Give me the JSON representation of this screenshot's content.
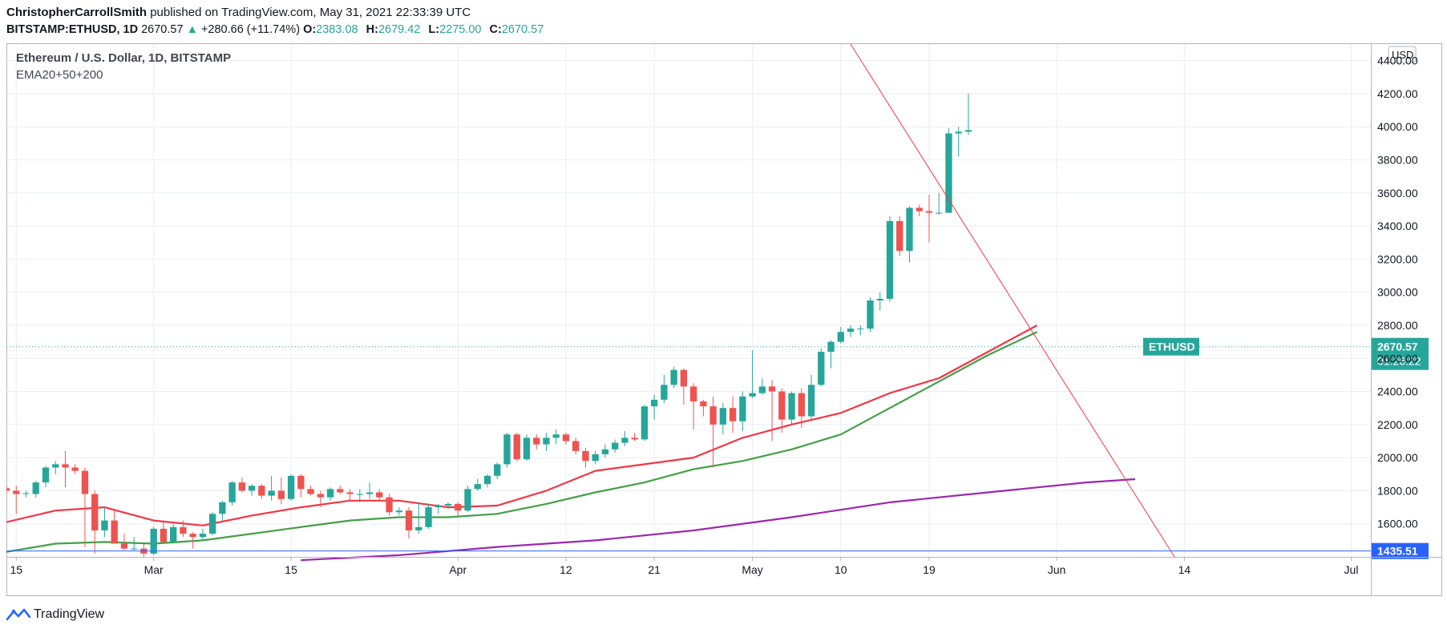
{
  "header": {
    "author": "ChristopherCarrollSmith",
    "published": "published on TradingView.com, May 31, 2021 22:33:39 UTC",
    "symbol": "BITSTAMP:ETHUSD, 1D",
    "last": "2670.57",
    "change": "+280.66 (+11.74%)",
    "o_label": "O:",
    "o": "2383.08",
    "h_label": "H:",
    "h": "2679.42",
    "l_label": "L:",
    "l": "2275.00",
    "c_label": "C:",
    "c": "2670.57"
  },
  "legend": {
    "title": "Ethereum / U.S. Dollar, 1D, BITSTAMP",
    "indicator": "EMA20+50+200"
  },
  "price_scale": {
    "currency": "USD",
    "symbol_tag": "ETHUSD",
    "last_price": "2670.57",
    "countdown": "01:26:22",
    "hline_label": "1435.51"
  },
  "footer": {
    "brand": "TradingView"
  },
  "colors": {
    "up": "#26a69a",
    "down": "#ef5350",
    "ema20": "#f23645",
    "ema50": "#43a047",
    "ema200": "#9c27b0",
    "hline": "#2962ff",
    "trendline": "#f23645",
    "grid": "#e9eef3",
    "text": "#131722"
  },
  "chart_data": {
    "type": "candlestick",
    "title": "Ethereum / U.S. Dollar, 1D, BITSTAMP",
    "ylim": [
      1400,
      4500
    ],
    "y_ticks": [
      1600,
      1800,
      2000,
      2200,
      2400,
      2600,
      2800,
      3000,
      3200,
      3400,
      3600,
      3800,
      4000,
      4200,
      4400
    ],
    "y_tick_labels": [
      "1600.00",
      "1800.00",
      "2000.00",
      "2200.00",
      "2400.00",
      "2600.00",
      "2800.00",
      "3000.00",
      "3200.00",
      "3400.00",
      "3600.00",
      "3800.00",
      "4000.00",
      "4200.00",
      "4400.00"
    ],
    "x_start": "2021-02-14",
    "x_end": "2021-07-03",
    "x_ticks": [
      {
        "date": "2021-02-15",
        "label": "15"
      },
      {
        "date": "2021-03-01",
        "label": "Mar"
      },
      {
        "date": "2021-03-15",
        "label": "15"
      },
      {
        "date": "2021-04-01",
        "label": "Apr"
      },
      {
        "date": "2021-04-12",
        "label": "12"
      },
      {
        "date": "2021-04-21",
        "label": "21"
      },
      {
        "date": "2021-05-01",
        "label": "May"
      },
      {
        "date": "2021-05-10",
        "label": "10"
      },
      {
        "date": "2021-05-19",
        "label": "19"
      },
      {
        "date": "2021-06-01",
        "label": "Jun"
      },
      {
        "date": "2021-06-14",
        "label": "14"
      },
      {
        "date": "2021-07-01",
        "label": "Jul"
      }
    ],
    "candles": [
      {
        "date": "2021-02-14",
        "o": 1815,
        "h": 1830,
        "l": 1780,
        "c": 1800
      },
      {
        "date": "2021-02-15",
        "o": 1800,
        "h": 1830,
        "l": 1660,
        "c": 1780
      },
      {
        "date": "2021-02-16",
        "o": 1780,
        "h": 1800,
        "l": 1760,
        "c": 1785
      },
      {
        "date": "2021-02-17",
        "o": 1780,
        "h": 1860,
        "l": 1760,
        "c": 1850
      },
      {
        "date": "2021-02-18",
        "o": 1850,
        "h": 1950,
        "l": 1820,
        "c": 1940
      },
      {
        "date": "2021-02-19",
        "o": 1940,
        "h": 1980,
        "l": 1900,
        "c": 1960
      },
      {
        "date": "2021-02-20",
        "o": 1960,
        "h": 2040,
        "l": 1820,
        "c": 1940
      },
      {
        "date": "2021-02-21",
        "o": 1940,
        "h": 1960,
        "l": 1900,
        "c": 1920
      },
      {
        "date": "2021-02-22",
        "o": 1920,
        "h": 1940,
        "l": 1460,
        "c": 1780
      },
      {
        "date": "2021-02-23",
        "o": 1780,
        "h": 1800,
        "l": 1420,
        "c": 1560
      },
      {
        "date": "2021-02-24",
        "o": 1560,
        "h": 1700,
        "l": 1520,
        "c": 1620
      },
      {
        "date": "2021-02-25",
        "o": 1620,
        "h": 1680,
        "l": 1480,
        "c": 1480
      },
      {
        "date": "2021-02-26",
        "o": 1480,
        "h": 1540,
        "l": 1440,
        "c": 1450
      },
      {
        "date": "2021-02-27",
        "o": 1450,
        "h": 1520,
        "l": 1440,
        "c": 1450
      },
      {
        "date": "2021-02-28",
        "o": 1450,
        "h": 1480,
        "l": 1400,
        "c": 1420
      },
      {
        "date": "2021-03-01",
        "o": 1420,
        "h": 1580,
        "l": 1410,
        "c": 1570
      },
      {
        "date": "2021-03-02",
        "o": 1570,
        "h": 1610,
        "l": 1480,
        "c": 1490
      },
      {
        "date": "2021-03-03",
        "o": 1490,
        "h": 1600,
        "l": 1480,
        "c": 1580
      },
      {
        "date": "2021-03-04",
        "o": 1580,
        "h": 1620,
        "l": 1520,
        "c": 1540
      },
      {
        "date": "2021-03-05",
        "o": 1540,
        "h": 1550,
        "l": 1450,
        "c": 1520
      },
      {
        "date": "2021-03-06",
        "o": 1520,
        "h": 1570,
        "l": 1500,
        "c": 1540
      },
      {
        "date": "2021-03-07",
        "o": 1540,
        "h": 1670,
        "l": 1530,
        "c": 1660
      },
      {
        "date": "2021-03-08",
        "o": 1660,
        "h": 1740,
        "l": 1620,
        "c": 1730
      },
      {
        "date": "2021-03-09",
        "o": 1730,
        "h": 1860,
        "l": 1710,
        "c": 1850
      },
      {
        "date": "2021-03-10",
        "o": 1850,
        "h": 1880,
        "l": 1790,
        "c": 1800
      },
      {
        "date": "2021-03-11",
        "o": 1800,
        "h": 1840,
        "l": 1770,
        "c": 1830
      },
      {
        "date": "2021-03-12",
        "o": 1830,
        "h": 1840,
        "l": 1750,
        "c": 1770
      },
      {
        "date": "2021-03-13",
        "o": 1770,
        "h": 1890,
        "l": 1740,
        "c": 1800
      },
      {
        "date": "2021-03-14",
        "o": 1800,
        "h": 1880,
        "l": 1720,
        "c": 1750
      },
      {
        "date": "2021-03-15",
        "o": 1750,
        "h": 1900,
        "l": 1740,
        "c": 1890
      },
      {
        "date": "2021-03-16",
        "o": 1890,
        "h": 1900,
        "l": 1760,
        "c": 1810
      },
      {
        "date": "2021-03-17",
        "o": 1810,
        "h": 1830,
        "l": 1770,
        "c": 1780
      },
      {
        "date": "2021-03-18",
        "o": 1780,
        "h": 1800,
        "l": 1700,
        "c": 1760
      },
      {
        "date": "2021-03-19",
        "o": 1760,
        "h": 1820,
        "l": 1740,
        "c": 1810
      },
      {
        "date": "2021-03-20",
        "o": 1810,
        "h": 1830,
        "l": 1780,
        "c": 1790
      },
      {
        "date": "2021-03-21",
        "o": 1790,
        "h": 1810,
        "l": 1740,
        "c": 1780
      },
      {
        "date": "2021-03-22",
        "o": 1780,
        "h": 1810,
        "l": 1730,
        "c": 1780
      },
      {
        "date": "2021-03-23",
        "o": 1780,
        "h": 1850,
        "l": 1750,
        "c": 1790
      },
      {
        "date": "2021-03-24",
        "o": 1790,
        "h": 1810,
        "l": 1740,
        "c": 1760
      },
      {
        "date": "2021-03-25",
        "o": 1760,
        "h": 1780,
        "l": 1650,
        "c": 1670
      },
      {
        "date": "2021-03-26",
        "o": 1670,
        "h": 1700,
        "l": 1650,
        "c": 1680
      },
      {
        "date": "2021-03-27",
        "o": 1680,
        "h": 1700,
        "l": 1510,
        "c": 1560
      },
      {
        "date": "2021-03-28",
        "o": 1560,
        "h": 1730,
        "l": 1540,
        "c": 1580
      },
      {
        "date": "2021-03-29",
        "o": 1580,
        "h": 1720,
        "l": 1570,
        "c": 1700
      },
      {
        "date": "2021-03-30",
        "o": 1700,
        "h": 1720,
        "l": 1660,
        "c": 1710
      },
      {
        "date": "2021-03-31",
        "o": 1710,
        "h": 1730,
        "l": 1690,
        "c": 1720
      },
      {
        "date": "2021-04-01",
        "o": 1720,
        "h": 1730,
        "l": 1650,
        "c": 1680
      },
      {
        "date": "2021-04-02",
        "o": 1680,
        "h": 1830,
        "l": 1670,
        "c": 1810
      },
      {
        "date": "2021-04-03",
        "o": 1810,
        "h": 1870,
        "l": 1800,
        "c": 1840
      },
      {
        "date": "2021-04-04",
        "o": 1840,
        "h": 1900,
        "l": 1820,
        "c": 1890
      },
      {
        "date": "2021-04-05",
        "o": 1890,
        "h": 1970,
        "l": 1870,
        "c": 1960
      },
      {
        "date": "2021-04-06",
        "o": 1960,
        "h": 2150,
        "l": 1940,
        "c": 2140
      },
      {
        "date": "2021-04-07",
        "o": 2140,
        "h": 2150,
        "l": 1980,
        "c": 1990
      },
      {
        "date": "2021-04-08",
        "o": 1990,
        "h": 2140,
        "l": 1980,
        "c": 2120
      },
      {
        "date": "2021-04-09",
        "o": 2120,
        "h": 2140,
        "l": 2050,
        "c": 2080
      },
      {
        "date": "2021-04-10",
        "o": 2080,
        "h": 2150,
        "l": 2040,
        "c": 2120
      },
      {
        "date": "2021-04-11",
        "o": 2120,
        "h": 2170,
        "l": 2080,
        "c": 2140
      },
      {
        "date": "2021-04-12",
        "o": 2140,
        "h": 2150,
        "l": 2080,
        "c": 2100
      },
      {
        "date": "2021-04-13",
        "o": 2100,
        "h": 2120,
        "l": 2020,
        "c": 2040
      },
      {
        "date": "2021-04-14",
        "o": 2040,
        "h": 2060,
        "l": 1940,
        "c": 1980
      },
      {
        "date": "2021-04-15",
        "o": 1980,
        "h": 2040,
        "l": 1960,
        "c": 2020
      },
      {
        "date": "2021-04-16",
        "o": 2020,
        "h": 2080,
        "l": 2000,
        "c": 2050
      },
      {
        "date": "2021-04-17",
        "o": 2050,
        "h": 2110,
        "l": 2030,
        "c": 2090
      },
      {
        "date": "2021-04-18",
        "o": 2090,
        "h": 2160,
        "l": 2070,
        "c": 2120
      },
      {
        "date": "2021-04-19",
        "o": 2120,
        "h": 2150,
        "l": 2100,
        "c": 2110
      },
      {
        "date": "2021-04-20",
        "o": 2110,
        "h": 2320,
        "l": 2100,
        "c": 2310
      },
      {
        "date": "2021-04-21",
        "o": 2310,
        "h": 2380,
        "l": 2230,
        "c": 2350
      },
      {
        "date": "2021-04-22",
        "o": 2350,
        "h": 2500,
        "l": 2330,
        "c": 2440
      },
      {
        "date": "2021-04-23",
        "o": 2440,
        "h": 2550,
        "l": 2420,
        "c": 2530
      },
      {
        "date": "2021-04-24",
        "o": 2530,
        "h": 2540,
        "l": 2320,
        "c": 2430
      },
      {
        "date": "2021-04-25",
        "o": 2430,
        "h": 2450,
        "l": 2170,
        "c": 2340
      },
      {
        "date": "2021-04-26",
        "o": 2340,
        "h": 2350,
        "l": 2250,
        "c": 2310
      },
      {
        "date": "2021-04-27",
        "o": 2310,
        "h": 2370,
        "l": 1940,
        "c": 2200
      },
      {
        "date": "2021-04-28",
        "o": 2200,
        "h": 2330,
        "l": 2140,
        "c": 2300
      },
      {
        "date": "2021-04-29",
        "o": 2300,
        "h": 2370,
        "l": 2150,
        "c": 2220
      },
      {
        "date": "2021-04-30",
        "o": 2220,
        "h": 2400,
        "l": 2160,
        "c": 2370
      },
      {
        "date": "2021-05-01",
        "o": 2370,
        "h": 2650,
        "l": 2360,
        "c": 2390
      },
      {
        "date": "2021-05-02",
        "o": 2390,
        "h": 2480,
        "l": 2380,
        "c": 2430
      },
      {
        "date": "2021-05-03",
        "o": 2430,
        "h": 2470,
        "l": 2100,
        "c": 2400
      },
      {
        "date": "2021-05-04",
        "o": 2400,
        "h": 2420,
        "l": 2150,
        "c": 2230
      },
      {
        "date": "2021-05-05",
        "o": 2230,
        "h": 2400,
        "l": 2200,
        "c": 2390
      },
      {
        "date": "2021-05-06",
        "o": 2390,
        "h": 2420,
        "l": 2180,
        "c": 2250
      },
      {
        "date": "2021-05-07",
        "o": 2250,
        "h": 2500,
        "l": 2220,
        "c": 2440
      },
      {
        "date": "2021-05-08",
        "o": 2440,
        "h": 2660,
        "l": 2430,
        "c": 2640
      },
      {
        "date": "2021-05-09",
        "o": 2640,
        "h": 2710,
        "l": 2540,
        "c": 2700
      },
      {
        "date": "2021-05-10",
        "o": 2700,
        "h": 2790,
        "l": 2690,
        "c": 2760
      },
      {
        "date": "2021-05-11",
        "o": 2760,
        "h": 2800,
        "l": 2730,
        "c": 2780
      },
      {
        "date": "2021-05-12",
        "o": 2780,
        "h": 2800,
        "l": 2740,
        "c": 2780
      },
      {
        "date": "2021-05-13",
        "o": 2780,
        "h": 2970,
        "l": 2760,
        "c": 2950
      },
      {
        "date": "2021-05-14",
        "o": 2950,
        "h": 3000,
        "l": 2890,
        "c": 2960
      },
      {
        "date": "2021-05-15",
        "o": 2960,
        "h": 3460,
        "l": 2940,
        "c": 3430
      },
      {
        "date": "2021-05-16",
        "o": 3430,
        "h": 3460,
        "l": 3220,
        "c": 3250
      },
      {
        "date": "2021-05-17",
        "o": 3250,
        "h": 3520,
        "l": 3180,
        "c": 3510
      },
      {
        "date": "2021-05-18",
        "o": 3510,
        "h": 3530,
        "l": 3460,
        "c": 3490
      },
      {
        "date": "2021-05-19",
        "o": 3490,
        "h": 3590,
        "l": 3300,
        "c": 3480
      },
      {
        "date": "2021-05-20",
        "o": 3480,
        "h": 3600,
        "l": 3470,
        "c": 3480
      },
      {
        "date": "2021-05-21",
        "o": 3480,
        "h": 3990,
        "l": 3480,
        "c": 3960
      },
      {
        "date": "2021-05-22",
        "o": 3960,
        "h": 4000,
        "l": 3820,
        "c": 3970
      },
      {
        "date": "2021-05-23",
        "o": 3970,
        "h": 4200,
        "l": 3950,
        "c": 3980
      }
    ],
    "ema20": [
      [
        0,
        1610
      ],
      [
        5,
        1680
      ],
      [
        10,
        1700
      ],
      [
        15,
        1620
      ],
      [
        20,
        1590
      ],
      [
        25,
        1650
      ],
      [
        30,
        1700
      ],
      [
        35,
        1740
      ],
      [
        40,
        1740
      ],
      [
        45,
        1700
      ],
      [
        50,
        1710
      ],
      [
        55,
        1800
      ],
      [
        60,
        1920
      ],
      [
        65,
        1960
      ],
      [
        70,
        2000
      ],
      [
        75,
        2120
      ],
      [
        80,
        2200
      ],
      [
        85,
        2270
      ],
      [
        90,
        2390
      ],
      [
        95,
        2480
      ],
      [
        100,
        2640
      ],
      [
        105,
        2800
      ]
    ],
    "ema50": [
      [
        0,
        1430
      ],
      [
        5,
        1480
      ],
      [
        10,
        1490
      ],
      [
        15,
        1480
      ],
      [
        20,
        1500
      ],
      [
        25,
        1540
      ],
      [
        30,
        1580
      ],
      [
        35,
        1620
      ],
      [
        40,
        1640
      ],
      [
        45,
        1640
      ],
      [
        50,
        1660
      ],
      [
        55,
        1720
      ],
      [
        60,
        1790
      ],
      [
        65,
        1850
      ],
      [
        70,
        1930
      ],
      [
        75,
        1980
      ],
      [
        80,
        2050
      ],
      [
        85,
        2140
      ],
      [
        90,
        2300
      ],
      [
        95,
        2460
      ],
      [
        100,
        2620
      ],
      [
        105,
        2760
      ]
    ],
    "ema200": [
      [
        30,
        1380
      ],
      [
        40,
        1410
      ],
      [
        50,
        1460
      ],
      [
        60,
        1500
      ],
      [
        70,
        1560
      ],
      [
        80,
        1640
      ],
      [
        90,
        1730
      ],
      [
        100,
        1790
      ],
      [
        105,
        1820
      ],
      [
        110,
        1850
      ],
      [
        115,
        1870
      ]
    ],
    "trendline": [
      [
        "2021-05-11",
        4500
      ],
      [
        "2021-06-13",
        1400
      ]
    ],
    "hline": 1435.51
  }
}
